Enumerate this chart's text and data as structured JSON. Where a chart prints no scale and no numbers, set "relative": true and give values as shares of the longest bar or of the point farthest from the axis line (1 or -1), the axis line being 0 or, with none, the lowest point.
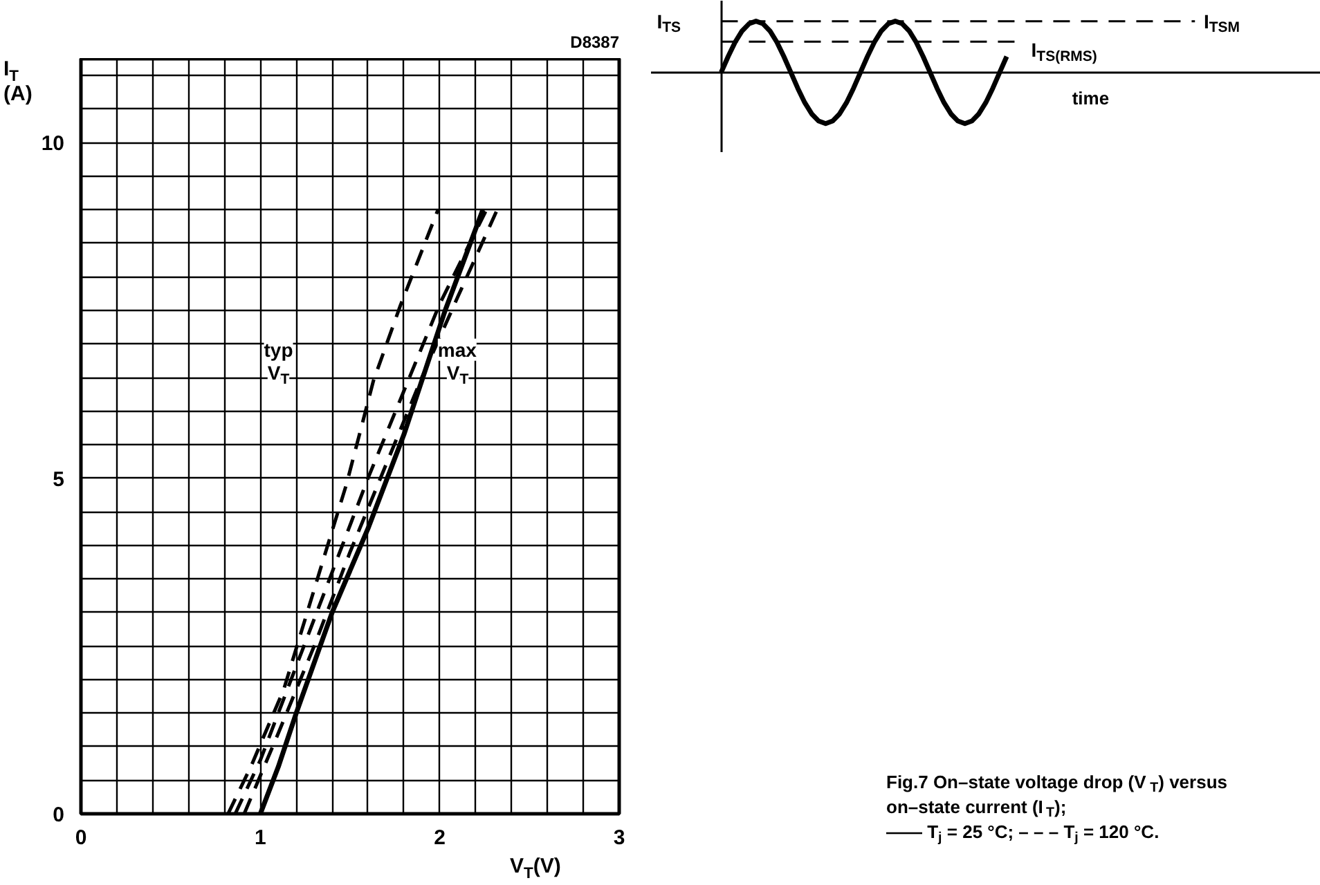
{
  "chart_data": [
    {
      "type": "line",
      "xlabel": "V$_{T}$(V)",
      "ylabel": "I$_{T}$\n(A)",
      "xlim": [
        0,
        3
      ],
      "ylim": [
        0,
        11.25
      ],
      "xticks": [
        0,
        {
          "value": 0.2,
          "label": null
        },
        {
          "value": 0.4,
          "label": null
        },
        {
          "value": 0.6,
          "label": null
        },
        {
          "value": 0.8,
          "label": null
        },
        1,
        {
          "value": 1.2,
          "label": null
        },
        {
          "value": 1.4,
          "label": null
        },
        {
          "value": 1.6,
          "label": null
        },
        {
          "value": 1.8,
          "label": null
        },
        2,
        {
          "value": 2.2,
          "label": null
        },
        {
          "value": 2.4,
          "label": null
        },
        {
          "value": 2.6,
          "label": null
        },
        {
          "value": 2.8,
          "label": null
        },
        3
      ],
      "yticks": [
        0,
        {
          "value": 0.5,
          "label": null
        },
        {
          "value": 1,
          "label": null
        },
        {
          "value": 1.5,
          "label": null
        },
        {
          "value": 2,
          "label": null
        },
        {
          "value": 2.5,
          "label": null
        },
        {
          "value": 3,
          "label": null
        },
        {
          "value": 3.5,
          "label": null
        },
        {
          "value": 4,
          "label": null
        },
        {
          "value": 4.5,
          "label": null
        },
        5,
        {
          "value": 5.5,
          "label": null
        },
        {
          "value": 6,
          "label": null
        },
        {
          "value": 6.5,
          "label": null
        },
        {
          "value": 7,
          "label": null
        },
        {
          "value": 7.5,
          "label": null
        },
        {
          "value": 8,
          "label": null
        },
        {
          "value": 8.5,
          "label": null
        },
        {
          "value": 9,
          "label": null
        },
        {
          "value": 9.5,
          "label": null
        },
        10,
        {
          "value": 10.5,
          "label": null
        },
        {
          "value": 11,
          "label": null
        }
      ],
      "grid": true,
      "series": [
        {
          "color": "#000000",
          "line_style": "solid",
          "x": [
            1.0,
            1.1,
            1.2,
            1.4,
            1.6,
            1.8,
            2.03,
            2.24
          ],
          "values": [
            0,
            0.7,
            1.5,
            3.0,
            4.25,
            5.65,
            7.5,
            9.0
          ]
        },
        {
          "color": "#000000",
          "line_style": "dashed",
          "x": [
            0.82,
            0.95,
            1.13,
            1.35,
            1.48,
            1.63,
            1.78,
            1.99
          ],
          "values": [
            0,
            0.72,
            1.85,
            3.78,
            4.91,
            6.45,
            7.57,
            9.0
          ]
        },
        {
          "color": "#000000",
          "line_style": "dashed",
          "x": [
            0.86,
            1.0,
            1.2,
            1.4,
            1.6,
            1.8,
            2.0,
            2.26
          ],
          "values": [
            0,
            0.8,
            2.2,
            3.6,
            5.0,
            6.3,
            7.6,
            9.0
          ]
        },
        {
          "color": "#000000",
          "line_style": "dashed",
          "x": [
            0.91,
            1.1,
            1.3,
            1.5,
            1.7,
            1.9,
            2.1,
            2.32
          ],
          "values": [
            0,
            1.2,
            2.5,
            3.9,
            5.2,
            6.5,
            7.7,
            9.0
          ]
        }
      ],
      "annotations": [
        "D8387",
        "typ\nV$_{T}$",
        "max\nV$_{T}$",
        "Fig.7 On–state voltage drop (V$_{T}$) versus",
        "on–state current (I$_{T}$);",
        "—— T$_{j}$ = 25 °C; – – – T$_{j}$ = 120 °C."
      ]
    },
    {
      "type": "line",
      "relative": true,
      "ylabel": "I$_{TS}$",
      "xlabel": "time",
      "categories": [
        null,
        null,
        null,
        null,
        null,
        null,
        null,
        null,
        null,
        null,
        null,
        null,
        null,
        null,
        null,
        null,
        null,
        null,
        null,
        null,
        null,
        null,
        null,
        null,
        null,
        null,
        null,
        null,
        null,
        null,
        null,
        null,
        null,
        null,
        null,
        null,
        null,
        null,
        null,
        null,
        null,
        null
      ],
      "series": [
        {
          "color": "#000000",
          "values": [
            0,
            0.31,
            0.59,
            0.81,
            0.95,
            1,
            0.95,
            0.81,
            0.59,
            0.31,
            0,
            -0.31,
            -0.59,
            -0.81,
            -0.95,
            -1,
            -0.95,
            -0.81,
            -0.59,
            -0.31,
            0,
            0.31,
            0.59,
            0.81,
            0.95,
            1,
            0.95,
            0.81,
            0.59,
            0.31,
            0,
            -0.31,
            -0.59,
            -0.81,
            -0.95,
            -1,
            -0.95,
            -0.81,
            -0.59,
            -0.31,
            0,
            0.31
          ]
        }
      ],
      "ref_lines": [
        {
          "axis": "y",
          "value": 1,
          "label": "I$_{TSM}$",
          "line_style": "dashed"
        },
        {
          "axis": "y",
          "value": 0.6,
          "label": "I$_{TS(RMS)}$",
          "line_style": "dashed"
        }
      ]
    }
  ]
}
